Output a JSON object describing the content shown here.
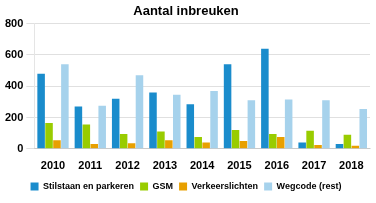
{
  "chart_data": {
    "type": "bar",
    "title": "Aantal inbreuken",
    "categories": [
      "2010",
      "2011",
      "2012",
      "2013",
      "2014",
      "2015",
      "2016",
      "2017",
      "2018"
    ],
    "series": [
      {
        "name": "Stilstaan en parkeren",
        "color": "#1a8ccc",
        "values": [
          480,
          270,
          320,
          360,
          285,
          540,
          640,
          40,
          30
        ]
      },
      {
        "name": "GSM",
        "color": "#99cc00",
        "values": [
          165,
          155,
          95,
          110,
          75,
          120,
          95,
          115,
          90
        ]
      },
      {
        "name": "Verkeerslichten",
        "color": "#e8a000",
        "values": [
          55,
          30,
          35,
          55,
          40,
          50,
          75,
          25,
          20
        ]
      },
      {
        "name": "Wegcode (rest)",
        "color": "#a6d2ec",
        "values": [
          540,
          275,
          470,
          345,
          370,
          310,
          315,
          310,
          255
        ]
      }
    ],
    "ylim": [
      0,
      800
    ],
    "yticks": [
      0,
      200,
      400,
      600,
      800
    ],
    "grid": true,
    "legend": "bottom"
  }
}
